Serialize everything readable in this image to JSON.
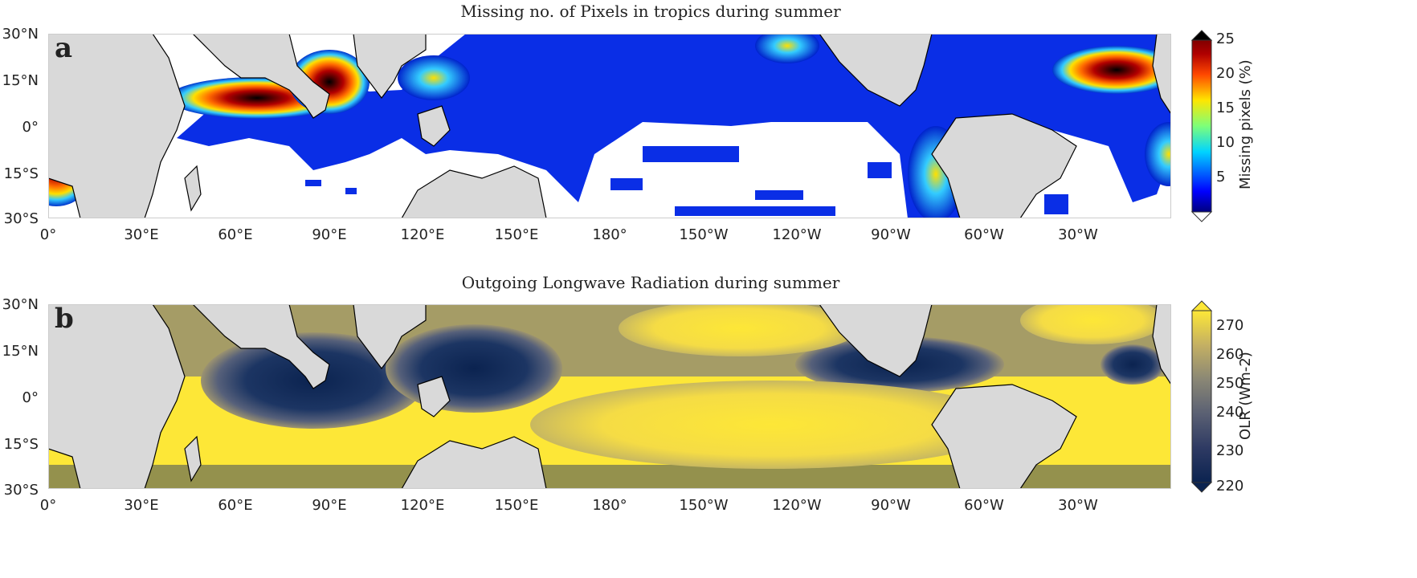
{
  "figure": {
    "panels": [
      {
        "letter": "a",
        "title": "Missing no. of Pixels in tropics during summer",
        "colorbar": {
          "label": "Missing pixels (%)",
          "ticks": [
            "25",
            "20",
            "15",
            "10",
            "5"
          ],
          "colormap": "jet"
        }
      },
      {
        "letter": "b",
        "title": "Outgoing Longwave Radiation during summer",
        "colorbar": {
          "label": "OLR (Wm-2)",
          "ticks": [
            "270",
            "260",
            "250",
            "240",
            "230",
            "220"
          ],
          "colormap": "cividis"
        }
      }
    ],
    "lat_ticks": [
      "30°N",
      "15°N",
      "0°",
      "15°S",
      "30°S"
    ],
    "lon_ticks": [
      "0°",
      "30°E",
      "60°E",
      "90°E",
      "120°E",
      "150°E",
      "180°",
      "150°W",
      "120°W",
      "90°W",
      "60°W",
      "30°W"
    ]
  },
  "colors": {
    "land": "#d9d9d9",
    "ocean_white": "#ffffff",
    "coast": "#000000"
  }
}
